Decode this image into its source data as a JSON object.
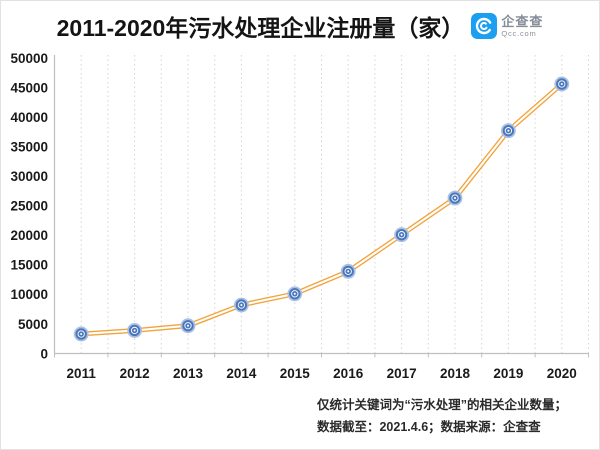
{
  "header": {
    "title": "2011-2020年污水处理企业注册量（家）",
    "logo": {
      "name": "企查查",
      "domain": "Qcc.com",
      "brand_color": "#1c9ff0"
    }
  },
  "chart_data": {
    "type": "line",
    "title": "2011-2020年污水处理企业注册量（家）",
    "categories": [
      "2011",
      "2012",
      "2013",
      "2014",
      "2015",
      "2016",
      "2017",
      "2018",
      "2019",
      "2020"
    ],
    "series": [
      {
        "name": "污水处理企业注册量",
        "values": [
          3300,
          3900,
          4700,
          8200,
          10100,
          13900,
          20100,
          26300,
          37700,
          45600
        ]
      }
    ],
    "xlabel": "",
    "ylabel": "",
    "ylim": [
      0,
      50000
    ],
    "ytick_interval": 5000,
    "yticks": [
      0,
      5000,
      10000,
      15000,
      20000,
      25000,
      30000,
      35000,
      40000,
      45000,
      50000
    ],
    "grid": "vertical-dotted",
    "legend": "none",
    "marker": "double-circle",
    "line_style": "double",
    "colors": {
      "line": "#f2a33c",
      "marker": "#4a77bc",
      "marker_halo": "#abc1e4",
      "grid": "#d4d4d4",
      "axis": "#bfbfbf",
      "tick_label": "#1a1a1a"
    }
  },
  "footer": {
    "note_line1": "仅统计关键词为“污水处理”的相关企业数量；",
    "note_line2": "数据截至：2021.4.6；数据来源：企查查"
  }
}
